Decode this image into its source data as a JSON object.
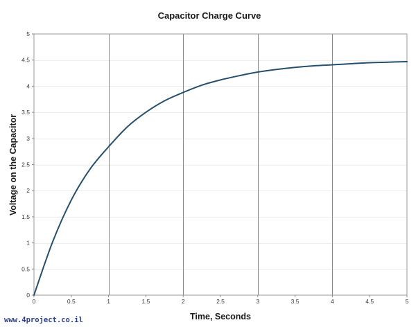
{
  "chart_data": {
    "type": "line",
    "title": "Capacitor Charge Curve",
    "xlabel": "Time, Seconds",
    "ylabel": "Voltage on the Capacitor",
    "xlim": [
      0,
      5
    ],
    "ylim": [
      0,
      5
    ],
    "x_ticks": [
      "0",
      "0.5",
      "1",
      "1.5",
      "2",
      "2.5",
      "3",
      "3.5",
      "4",
      "4.5",
      "5"
    ],
    "y_ticks": [
      "0",
      "0.5",
      "1",
      "1.5",
      "2",
      "2.5",
      "3",
      "3.5",
      "4",
      "4.5",
      "5"
    ],
    "x_major_gridlines": [
      1,
      2,
      3,
      4
    ],
    "y_gridlines": true,
    "legend": "none",
    "series": [
      {
        "color": "#23506f",
        "x": [
          0,
          0.25,
          0.5,
          0.75,
          1.0,
          1.25,
          1.5,
          1.75,
          2.0,
          2.25,
          2.5,
          2.75,
          3.0,
          3.25,
          3.5,
          3.75,
          4.0,
          4.25,
          4.5,
          4.75,
          5.0
        ],
        "y": [
          0,
          1.02,
          1.82,
          2.41,
          2.84,
          3.22,
          3.5,
          3.72,
          3.88,
          4.02,
          4.12,
          4.2,
          4.27,
          4.32,
          4.36,
          4.39,
          4.41,
          4.43,
          4.45,
          4.46,
          4.47
        ]
      }
    ]
  },
  "watermark": "www.4project.co.il"
}
